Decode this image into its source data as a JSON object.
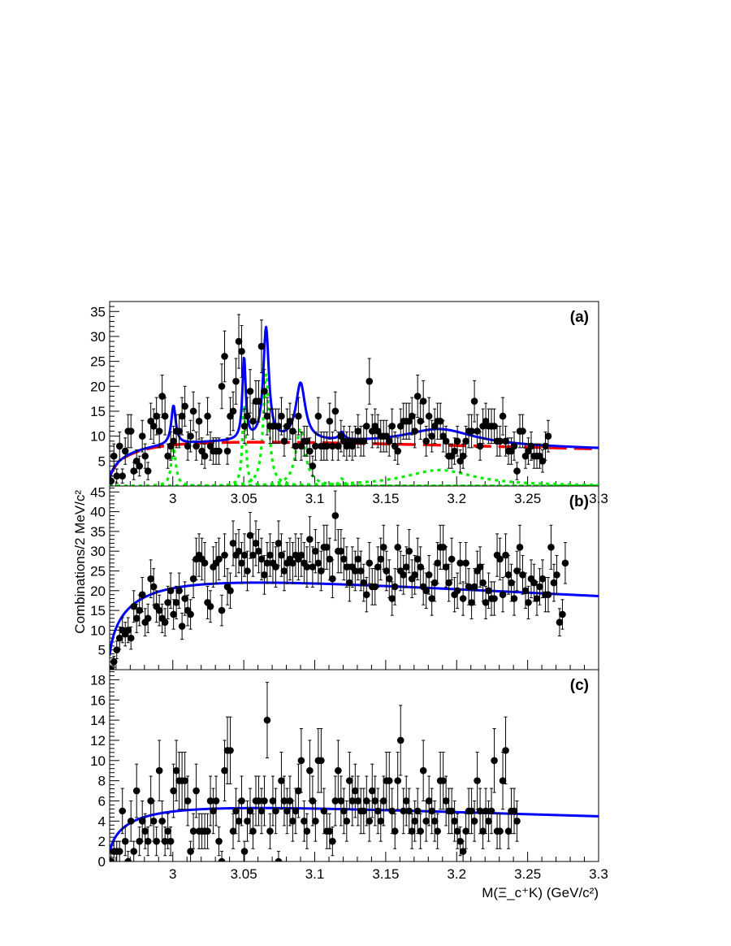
{
  "figure": {
    "xlabel": "M(Ξ_c⁺K) (GeV/c²)",
    "ylabel": "Combinations/2 MeV/c²",
    "colors": {
      "points": "#000000",
      "total_fit": "#0000ff",
      "background": "#ff0000",
      "signal": "#00ee00"
    }
  },
  "chart_data": [
    {
      "type": "scatter",
      "panel_label": "(a)",
      "xlim": [
        2.9555,
        3.3
      ],
      "ylim": [
        0,
        37
      ],
      "x_ticks": [
        "3",
        "3.05",
        "3.1",
        "3.15",
        "3.2",
        "3.25",
        "3.3"
      ],
      "y_ticks": [
        "5",
        "10",
        "15",
        "20",
        "25",
        "30",
        "35"
      ],
      "y_tick_values": [
        5,
        10,
        15,
        20,
        25,
        30,
        35
      ],
      "points": {
        "x_start": 2.9565,
        "bin_width": 0.002,
        "y": [
          1,
          6,
          2,
          8,
          2,
          7,
          11,
          11,
          3,
          5,
          4,
          10,
          6,
          3,
          13,
          12,
          14,
          11,
          18,
          14,
          6,
          8,
          9,
          11,
          11,
          14,
          16,
          8,
          10,
          15,
          8,
          13,
          7,
          6,
          14,
          8,
          7,
          7,
          7,
          20,
          26,
          7,
          14,
          15,
          21,
          29,
          27,
          12,
          14,
          19,
          13,
          17,
          17,
          28,
          19,
          14,
          12,
          12,
          12,
          12,
          14,
          9,
          12,
          13,
          11,
          8,
          14,
          8,
          9,
          9,
          7,
          4,
          8,
          14,
          8,
          8,
          8,
          13,
          8,
          15,
          8,
          10,
          9,
          8,
          9,
          8,
          9,
          11,
          9,
          9,
          12,
          21,
          11,
          12,
          11,
          10,
          10,
          10,
          9,
          12,
          8,
          7,
          12,
          13,
          13,
          13,
          14,
          11,
          18,
          13,
          17,
          9,
          14,
          10,
          12,
          13,
          13,
          10,
          9,
          6,
          6,
          7,
          9,
          5,
          6,
          9,
          11,
          11,
          17,
          11,
          8,
          12,
          13,
          12,
          12,
          12,
          9,
          9,
          14,
          9,
          7,
          7,
          8,
          3,
          11,
          11,
          6,
          7,
          8,
          6,
          6,
          6,
          5,
          8,
          10
        ]
      },
      "curves": [
        "total_fit",
        "background",
        "signal_components"
      ]
    },
    {
      "type": "scatter",
      "panel_label": "(b)",
      "xlim": [
        2.9555,
        3.3
      ],
      "ylim": [
        0,
        46.5
      ],
      "x_ticks": [],
      "y_ticks": [
        "5",
        "10",
        "15",
        "20",
        "25",
        "30",
        "35",
        "40",
        "45"
      ],
      "y_tick_values": [
        5,
        10,
        15,
        20,
        25,
        30,
        35,
        40,
        45
      ],
      "points": {
        "x_start": 2.9565,
        "bin_width": 0.002,
        "y": [
          0,
          2,
          5,
          8,
          10,
          9,
          10,
          8,
          16,
          13,
          15,
          19,
          12,
          13,
          23,
          21,
          16,
          15,
          13,
          12,
          17,
          20,
          14,
          17,
          20,
          11,
          18,
          15,
          14,
          23,
          28,
          29,
          28,
          27,
          17,
          16,
          26,
          27,
          28,
          15,
          29,
          21,
          20,
          32,
          29,
          30,
          27,
          29,
          25,
          34,
          29,
          32,
          30,
          28,
          24,
          27,
          29,
          27,
          26,
          32,
          29,
          25,
          27,
          28,
          27,
          29,
          28,
          29,
          27,
          26,
          33,
          26,
          30,
          27,
          25,
          31,
          31,
          28,
          23,
          39,
          30,
          30,
          28,
          26,
          22,
          26,
          25,
          28,
          25,
          22,
          19,
          27,
          21,
          21,
          26,
          28,
          31,
          25,
          23,
          18,
          21,
          31,
          25,
          24,
          26,
          30,
          23,
          24,
          28,
          26,
          21,
          20,
          24,
          18,
          22,
          27,
          31,
          31,
          26,
          22,
          28,
          19,
          20,
          27,
          18,
          27,
          21,
          17,
          21,
          25,
          26,
          22,
          17,
          20,
          18,
          18,
          29,
          28,
          19,
          29,
          24,
          22,
          18,
          25,
          31,
          24,
          20,
          17,
          23,
          22,
          18,
          21,
          23,
          19,
          19,
          31,
          22,
          24,
          12,
          14,
          27
        ]
      },
      "curves": [
        "total_fit"
      ]
    },
    {
      "type": "scatter",
      "panel_label": "(c)",
      "xlim": [
        2.9555,
        3.3
      ],
      "ylim": [
        0,
        19
      ],
      "x_ticks": [
        "3",
        "3.05",
        "3.1",
        "3.15",
        "3.2",
        "3.25",
        "3.3"
      ],
      "y_ticks": [
        "0",
        "2",
        "4",
        "6",
        "8",
        "10",
        "12",
        "14",
        "16",
        "18"
      ],
      "y_tick_values": [
        0,
        2,
        4,
        6,
        8,
        10,
        12,
        14,
        16,
        18
      ],
      "points": {
        "x_start": 2.9565,
        "bin_width": 0.002,
        "y": [
          0,
          1,
          1,
          1,
          5,
          2,
          0,
          4,
          1,
          7,
          2,
          4,
          3,
          2,
          6,
          4,
          2,
          9,
          4,
          2,
          3,
          2,
          7,
          9,
          8,
          8,
          8,
          6,
          1,
          3,
          7,
          3,
          3,
          3,
          3,
          6,
          5,
          6,
          2,
          0,
          9,
          11,
          11,
          3,
          5,
          4,
          6,
          1,
          4,
          5,
          3,
          6,
          6,
          5,
          6,
          14,
          3,
          6,
          5,
          0,
          8,
          6,
          5,
          6,
          4,
          5,
          7,
          10,
          4,
          3,
          9,
          6,
          4,
          10,
          10,
          5,
          3,
          3,
          2,
          6,
          9,
          6,
          5,
          4,
          8,
          6,
          7,
          6,
          5,
          5,
          6,
          4,
          7,
          6,
          5,
          4,
          6,
          8,
          8,
          5,
          3,
          8,
          12,
          5,
          6,
          5,
          3,
          4,
          5,
          3,
          9,
          4,
          6,
          5,
          4,
          3,
          8,
          8,
          6,
          5,
          5,
          4,
          3,
          2,
          1,
          3,
          5,
          5,
          4,
          8,
          5,
          3,
          5,
          4,
          5,
          10,
          3,
          3,
          8,
          11,
          3,
          5,
          5,
          4
        ]
      },
      "curves": [
        "total_fit"
      ]
    }
  ]
}
